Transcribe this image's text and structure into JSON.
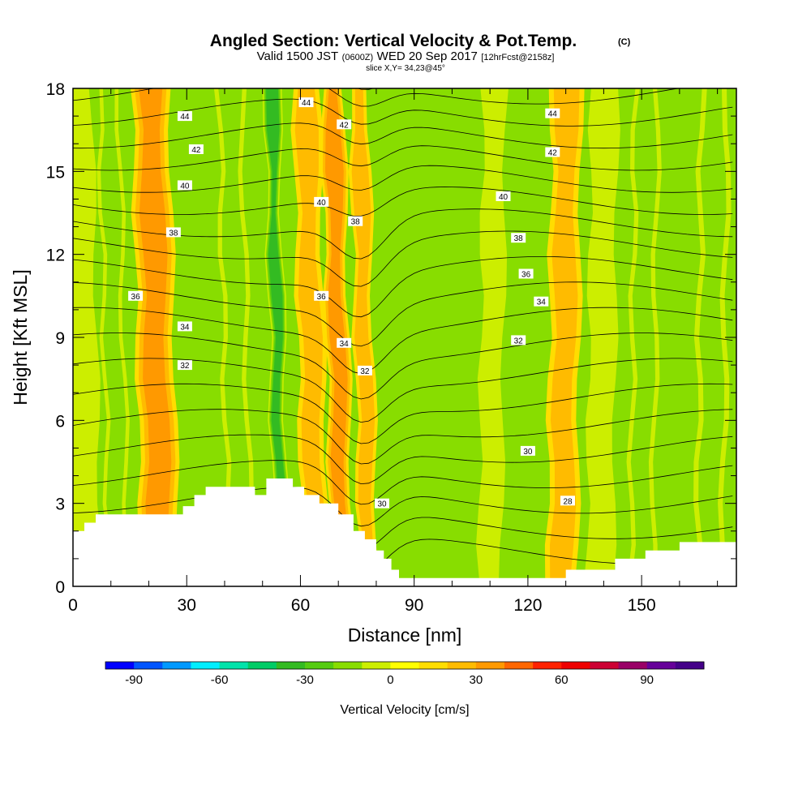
{
  "chart_data": {
    "type": "heatmap",
    "title": "Angled Section: Vertical Velocity & Pot.Temp.",
    "title_units": "(C)",
    "subtitle": {
      "valid": "Valid 1500 JST",
      "utc": "(0600Z)",
      "date": "WED 20 Sep 2017",
      "forecast": "[12hrFcst@2158z]"
    },
    "slice": "slice X,Y= 34,23@45°",
    "xlabel": "Distance [nm]",
    "ylabel": "Height [Kft MSL]",
    "xlim": [
      0,
      175
    ],
    "ylim": [
      0,
      18
    ],
    "x_ticks": [
      0,
      30,
      60,
      90,
      120,
      150
    ],
    "y_ticks": [
      0,
      3,
      6,
      9,
      12,
      15,
      18
    ],
    "colorbar": {
      "title": "Vertical Velocity [cm/s]",
      "min": -100,
      "max": 110,
      "step": 10,
      "tick_values": [
        -90,
        -60,
        -30,
        0,
        30,
        60,
        90
      ],
      "colors": [
        "#0000ff",
        "#0055ff",
        "#0099ff",
        "#00eeff",
        "#00e3aa",
        "#00cc66",
        "#33bb22",
        "#55cc11",
        "#88dd00",
        "#ccee00",
        "#ffff00",
        "#ffdd00",
        "#ffbb00",
        "#ff9900",
        "#ff6600",
        "#ff2200",
        "#ee0000",
        "#cc0033",
        "#990066",
        "#660099",
        "#440088"
      ]
    },
    "velocity_bands": [
      {
        "x": 3,
        "w": 9,
        "v": -16
      },
      {
        "x": 12,
        "w": 6,
        "v": -20
      },
      {
        "x": 23,
        "w": 10,
        "v": 34
      },
      {
        "x": 44,
        "w": 7,
        "v": -25
      },
      {
        "x": 55,
        "w": 4,
        "v": -48
      },
      {
        "x": 64,
        "w": 7,
        "v": 20
      },
      {
        "x": 71,
        "w": 6,
        "v": 36
      },
      {
        "x": 78,
        "w": 5,
        "v": 28
      },
      {
        "x": 90,
        "w": 18,
        "v": 4
      },
      {
        "x": 110,
        "w": 6,
        "v": -14
      },
      {
        "x": 129,
        "w": 8,
        "v": 22
      },
      {
        "x": 139,
        "w": 7,
        "v": -12
      },
      {
        "x": 150,
        "w": 7,
        "v": -24
      },
      {
        "x": 168,
        "w": 8,
        "v": -28
      }
    ],
    "contour_levels": [
      26,
      27,
      28,
      29,
      30,
      31,
      32,
      33,
      34,
      35,
      36,
      37,
      38,
      39,
      40,
      41,
      42,
      43,
      44,
      45,
      46
    ],
    "contour_labels": [
      {
        "x": 29.5,
        "y": 17.0,
        "v": "44"
      },
      {
        "x": 32.5,
        "y": 15.8,
        "v": "42"
      },
      {
        "x": 29.5,
        "y": 14.5,
        "v": "40"
      },
      {
        "x": 26.5,
        "y": 12.8,
        "v": "38"
      },
      {
        "x": 16.5,
        "y": 10.5,
        "v": "36"
      },
      {
        "x": 29.5,
        "y": 9.4,
        "v": "34"
      },
      {
        "x": 29.5,
        "y": 8.0,
        "v": "32"
      },
      {
        "x": 61.5,
        "y": 17.5,
        "v": "44"
      },
      {
        "x": 71.5,
        "y": 16.7,
        "v": "42"
      },
      {
        "x": 65.5,
        "y": 13.9,
        "v": "40"
      },
      {
        "x": 74.5,
        "y": 13.2,
        "v": "38"
      },
      {
        "x": 65.5,
        "y": 10.5,
        "v": "36"
      },
      {
        "x": 71.5,
        "y": 8.8,
        "v": "34"
      },
      {
        "x": 77.0,
        "y": 7.8,
        "v": "32"
      },
      {
        "x": 81.5,
        "y": 3.0,
        "v": "30"
      },
      {
        "x": 126.5,
        "y": 17.1,
        "v": "44"
      },
      {
        "x": 126.5,
        "y": 15.7,
        "v": "42"
      },
      {
        "x": 113.5,
        "y": 14.1,
        "v": "40"
      },
      {
        "x": 117.5,
        "y": 12.6,
        "v": "38"
      },
      {
        "x": 119.5,
        "y": 11.3,
        "v": "36"
      },
      {
        "x": 123.5,
        "y": 10.3,
        "v": "34"
      },
      {
        "x": 117.5,
        "y": 8.9,
        "v": "32"
      },
      {
        "x": 120.0,
        "y": 4.9,
        "v": "30"
      },
      {
        "x": 130.5,
        "y": 3.1,
        "v": "28"
      }
    ],
    "terrain": [
      [
        0,
        2.0
      ],
      [
        3,
        2.0
      ],
      [
        3,
        2.3
      ],
      [
        6,
        2.3
      ],
      [
        6,
        2.6
      ],
      [
        29,
        2.6
      ],
      [
        29,
        2.9
      ],
      [
        32,
        2.9
      ],
      [
        32,
        3.3
      ],
      [
        35,
        3.3
      ],
      [
        35,
        3.6
      ],
      [
        48,
        3.6
      ],
      [
        48,
        3.3
      ],
      [
        51,
        3.3
      ],
      [
        51,
        3.9
      ],
      [
        58,
        3.9
      ],
      [
        58,
        3.6
      ],
      [
        61,
        3.6
      ],
      [
        61,
        3.3
      ],
      [
        65,
        3.3
      ],
      [
        65,
        3.0
      ],
      [
        70,
        3.0
      ],
      [
        70,
        2.6
      ],
      [
        74,
        2.6
      ],
      [
        74,
        2.0
      ],
      [
        77,
        2.0
      ],
      [
        77,
        1.7
      ],
      [
        80,
        1.7
      ],
      [
        80,
        1.3
      ],
      [
        82,
        1.3
      ],
      [
        82,
        1.0
      ],
      [
        84,
        1.0
      ],
      [
        84,
        0.6
      ],
      [
        86,
        0.6
      ],
      [
        86,
        0.3
      ],
      [
        130,
        0.3
      ],
      [
        130,
        0.6
      ],
      [
        143,
        0.6
      ],
      [
        143,
        1.0
      ],
      [
        151,
        1.0
      ],
      [
        151,
        1.3
      ],
      [
        160,
        1.3
      ],
      [
        160,
        1.6
      ],
      [
        175,
        1.6
      ]
    ]
  }
}
